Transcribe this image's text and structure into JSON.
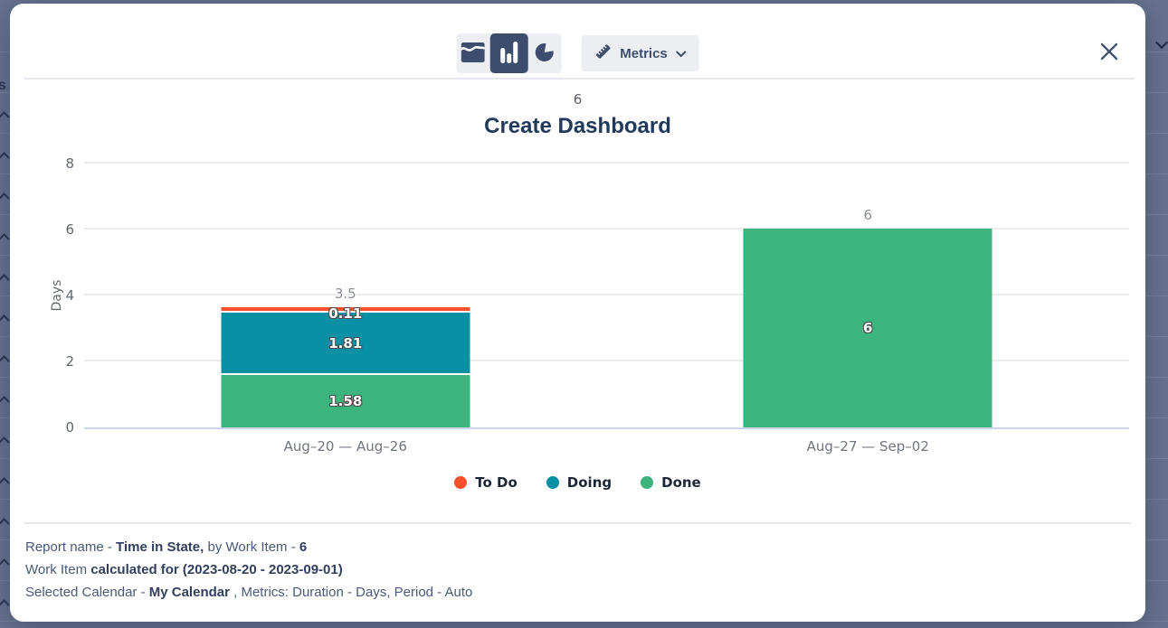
{
  "theme": {
    "backdrop": "#67738e",
    "navy": "#3c4d6d",
    "title_color": "#21395a",
    "control_bg": "#eceef1",
    "grid_color": "#ececee",
    "zero_line_color": "#ccd6ee",
    "axis_tick_color": "#63686f",
    "total_label_color": "#8a8e94",
    "legend_text_color": "#1d2634",
    "footer_text_color": "#4a5977",
    "footer_bold_color": "#323f5c"
  },
  "backdrop": {
    "partial_letter": "s",
    "collapse_chevron_count": 13
  },
  "toolbar": {
    "chart_types": [
      {
        "id": "area-chart",
        "selected": false
      },
      {
        "id": "bar-chart",
        "selected": true
      },
      {
        "id": "pie-chart",
        "selected": false
      }
    ],
    "metrics_label": "Metrics"
  },
  "chart_data": {
    "type": "bar",
    "stacked": true,
    "subtitle": "6",
    "title": "Create Dashboard",
    "ylabel": "Days",
    "ylim": [
      0,
      8
    ],
    "yticks": [
      0,
      2,
      4,
      6,
      8
    ],
    "grid": true,
    "legend_position": "bottom",
    "categories": [
      "Aug–20 — Aug–26",
      "Aug–27 — Sep–02"
    ],
    "series": [
      {
        "name": "To Do",
        "color": "#f4512c",
        "values": [
          0.11,
          0
        ]
      },
      {
        "name": "Doing",
        "color": "#0a90a5",
        "values": [
          1.81,
          0
        ]
      },
      {
        "name": "Done",
        "color": "#3cb47d",
        "values": [
          1.58,
          6
        ]
      }
    ],
    "totals": [
      3.5,
      6
    ]
  },
  "footer": {
    "lines": [
      [
        {
          "text": "Report name - "
        },
        {
          "text": "Time in State,",
          "bold": true
        },
        {
          "text": " by Work Item - "
        },
        {
          "text": "6",
          "bold": true
        }
      ],
      [
        {
          "text": "Work Item "
        },
        {
          "text": "calculated for (2023-08-20 - 2023-09-01)",
          "bold": true
        }
      ],
      [
        {
          "text": "Selected Calendar - "
        },
        {
          "text": "My Calendar",
          "bold": true
        },
        {
          "text": " , Metrics: Duration - Days, Period - Auto"
        }
      ]
    ]
  }
}
